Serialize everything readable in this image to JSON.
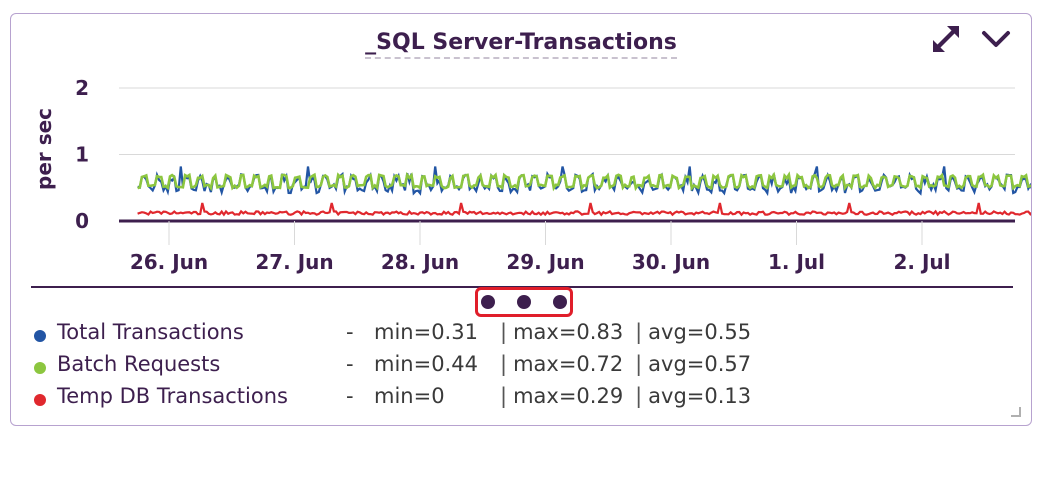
{
  "widget": {
    "title": "_SQL Server-Transactions",
    "expand_icon": "expand-arrows-icon",
    "menu_icon": "chevron-down-icon"
  },
  "chart_data": {
    "type": "line",
    "title": "_SQL Server-Transactions",
    "ylabel": "per sec",
    "xlabel": "",
    "ylim": [
      0,
      2
    ],
    "yticks": [
      "0",
      "1",
      "2"
    ],
    "x_tick_labels": [
      "26. Jun",
      "27. Jun",
      "28. Jun",
      "29. Jun",
      "30. Jun",
      "1. Jul",
      "2. Jul"
    ],
    "x_range_days": [
      0,
      7.3
    ],
    "grid": true,
    "legend_position": "bottom",
    "series": [
      {
        "name": "Total Transactions",
        "color": "#2255a4",
        "min": 0.31,
        "max": 0.83,
        "avg": 0.55
      },
      {
        "name": "Batch Requests",
        "color": "#8cc63f",
        "min": 0.44,
        "max": 0.72,
        "avg": 0.57
      },
      {
        "name": "Temp DB Transactions",
        "color": "#e0282e",
        "min": 0,
        "max": 0.29,
        "avg": 0.13
      }
    ]
  },
  "legend": {
    "dash": "-",
    "separator": "|",
    "rows": [
      {
        "name": "Total Transactions",
        "min": "min=0.31",
        "max": "max=0.83",
        "avg": "avg=0.55"
      },
      {
        "name": "Batch Requests",
        "min": "min=0.44",
        "max": "max=0.72",
        "avg": "avg=0.57"
      },
      {
        "name": "Temp DB Transactions",
        "min": "min=0",
        "max": "max=0.29",
        "avg": "avg=0.13"
      }
    ]
  },
  "colors": {
    "accent": "#3d1f4e",
    "border": "#b7a2cf",
    "highlight": "#e01e2a"
  }
}
